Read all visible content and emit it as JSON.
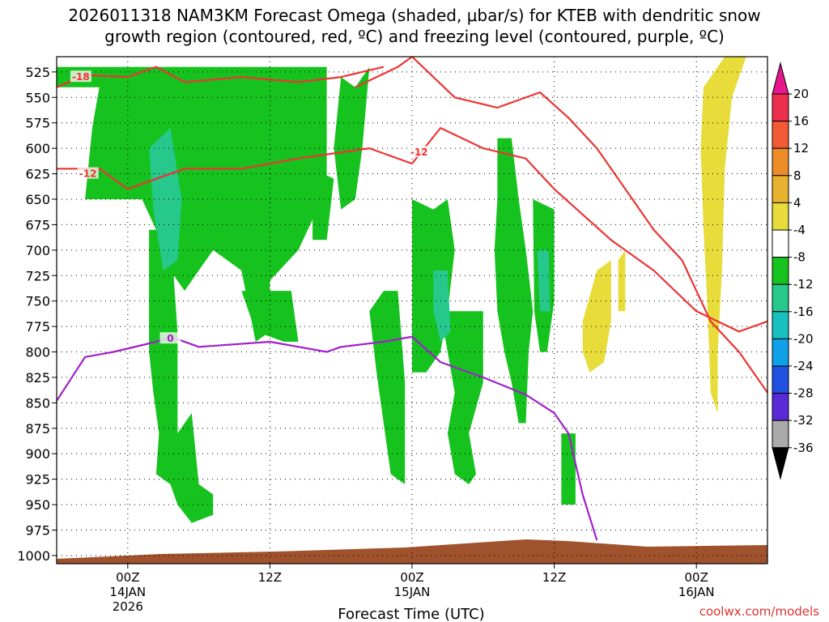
{
  "chart_data": {
    "type": "time-height",
    "title_line1": "2026011318 NAM3KM Forecast Omega (shaded, μbar/s) for KTEB with dendritic snow",
    "title_line2": "growth region (contoured, red, ºC) and freezing level (contoured, purple, ºC)",
    "xlabel": "Forecast Time (UTC)",
    "credit": "coolwx.com/models",
    "x_range_hours": [
      -5,
      45
    ],
    "x_ticks": [
      {
        "hour": 0,
        "label": "00Z",
        "sub1": "14JAN",
        "sub2": "2026"
      },
      {
        "hour": 10,
        "label": "12Z",
        "sub1": "",
        "sub2": ""
      },
      {
        "hour": 20,
        "label": "00Z",
        "sub1": "15JAN",
        "sub2": ""
      },
      {
        "hour": 30,
        "label": "12Z",
        "sub1": "",
        "sub2": ""
      },
      {
        "hour": 40,
        "label": "00Z",
        "sub1": "16JAN",
        "sub2": ""
      }
    ],
    "y_levels": [
      "525",
      "550",
      "575",
      "600",
      "625",
      "650",
      "675",
      "700",
      "725",
      "750",
      "775",
      "800",
      "825",
      "850",
      "875",
      "900",
      "925",
      "950",
      "975",
      "1000"
    ],
    "y_range_mb": [
      510,
      1008
    ],
    "colorbar_labels": [
      "20",
      "16",
      "12",
      "8",
      "4",
      "-4",
      "-8",
      "-12",
      "-16",
      "-20",
      "-24",
      "-28",
      "-32",
      "-36"
    ],
    "colorbar_colors": [
      "#ee2e4e",
      "#f25a36",
      "#ee8c28",
      "#e8b22e",
      "#e8dc3a",
      "#ffffff",
      "#16c21e",
      "#26c88c",
      "#18c0c0",
      "#10a0e8",
      "#2050e0",
      "#5a2ad8",
      "#9a10c8",
      "#aaaaaa"
    ],
    "colorbar_top_color": "#e8168c",
    "colorbar_bottom_color": "#000000",
    "omega_regions": [
      {
        "color": "#16c21e",
        "pts": [
          [
            -5,
            540
          ],
          [
            -5,
            520
          ],
          [
            0,
            520
          ],
          [
            5,
            520
          ],
          [
            9,
            520
          ],
          [
            14,
            520
          ],
          [
            14,
            640
          ],
          [
            12,
            700
          ],
          [
            10,
            730
          ],
          [
            10,
            780
          ],
          [
            9,
            790
          ],
          [
            8,
            720
          ],
          [
            6,
            700
          ],
          [
            4,
            740
          ],
          [
            3,
            720
          ],
          [
            2,
            680
          ],
          [
            1,
            650
          ],
          [
            -1,
            650
          ],
          [
            -3,
            650
          ],
          [
            -2.5,
            580
          ],
          [
            -2,
            540
          ]
        ]
      },
      {
        "color": "#16c21e",
        "pts": [
          [
            1.5,
            680
          ],
          [
            3,
            680
          ],
          [
            3.5,
            780
          ],
          [
            3.5,
            880
          ],
          [
            4.5,
            860
          ],
          [
            5,
            930
          ],
          [
            6,
            940
          ],
          [
            6,
            960
          ],
          [
            4.5,
            968
          ],
          [
            3.5,
            950
          ],
          [
            3,
            930
          ],
          [
            2,
            920
          ],
          [
            2.2,
            880
          ],
          [
            1.8,
            840
          ],
          [
            1.5,
            800
          ]
        ]
      },
      {
        "color": "#16c21e",
        "pts": [
          [
            8,
            740
          ],
          [
            10,
            740
          ],
          [
            11.5,
            740
          ],
          [
            12,
            790
          ],
          [
            11,
            790
          ],
          [
            9,
            780
          ]
        ]
      },
      {
        "color": "#16c21e",
        "pts": [
          [
            15,
            530
          ],
          [
            16,
            540
          ],
          [
            17,
            520
          ],
          [
            16.5,
            600
          ],
          [
            16,
            650
          ],
          [
            15,
            660
          ],
          [
            14.5,
            600
          ]
        ]
      },
      {
        "color": "#16c21e",
        "pts": [
          [
            13,
            620
          ],
          [
            14.5,
            630
          ],
          [
            14,
            690
          ],
          [
            13,
            690
          ]
        ]
      },
      {
        "color": "#16c21e",
        "pts": [
          [
            18,
            740
          ],
          [
            19,
            740
          ],
          [
            19.5,
            830
          ],
          [
            19.5,
            930
          ],
          [
            18.5,
            920
          ],
          [
            17.5,
            820
          ],
          [
            17,
            760
          ]
        ]
      },
      {
        "color": "#16c21e",
        "pts": [
          [
            20,
            650
          ],
          [
            21.5,
            660
          ],
          [
            22.5,
            650
          ],
          [
            23,
            700
          ],
          [
            22.5,
            760
          ],
          [
            22,
            800
          ],
          [
            21,
            820
          ],
          [
            20,
            820
          ]
        ]
      },
      {
        "color": "#16c21e",
        "pts": [
          [
            22,
            760
          ],
          [
            24,
            760
          ],
          [
            25,
            760
          ],
          [
            25,
            830
          ],
          [
            24,
            880
          ],
          [
            24.5,
            920
          ],
          [
            24,
            930
          ],
          [
            23,
            920
          ],
          [
            22.5,
            880
          ],
          [
            23,
            840
          ]
        ]
      },
      {
        "color": "#16c21e",
        "pts": [
          [
            26,
            590
          ],
          [
            27,
            590
          ],
          [
            27.5,
            650
          ],
          [
            28,
            700
          ],
          [
            28.5,
            760
          ],
          [
            28.2,
            800
          ],
          [
            28,
            870
          ],
          [
            27.5,
            870
          ],
          [
            27,
            830
          ],
          [
            26.5,
            800
          ],
          [
            26,
            760
          ],
          [
            25.8,
            700
          ],
          [
            26,
            650
          ]
        ]
      },
      {
        "color": "#16c21e",
        "pts": [
          [
            28.5,
            650
          ],
          [
            30,
            660
          ],
          [
            30,
            750
          ],
          [
            29.5,
            800
          ],
          [
            29,
            800
          ],
          [
            28.6,
            760
          ]
        ]
      },
      {
        "color": "#16c21e",
        "pts": [
          [
            30.5,
            880
          ],
          [
            31.5,
            880
          ],
          [
            31.5,
            950
          ],
          [
            30.5,
            950
          ]
        ]
      },
      {
        "color": "#26c88c",
        "pts": [
          [
            1.5,
            600
          ],
          [
            3,
            580
          ],
          [
            3.8,
            650
          ],
          [
            3.5,
            710
          ],
          [
            2.5,
            720
          ],
          [
            1.8,
            660
          ]
        ]
      },
      {
        "color": "#26c88c",
        "pts": [
          [
            21.5,
            720
          ],
          [
            22.5,
            720
          ],
          [
            22.7,
            780
          ],
          [
            22,
            790
          ],
          [
            21.5,
            760
          ]
        ]
      },
      {
        "color": "#26c88c",
        "pts": [
          [
            28.8,
            700
          ],
          [
            29.6,
            700
          ],
          [
            29.7,
            760
          ],
          [
            29,
            760
          ]
        ]
      },
      {
        "color": "#e8dc3a",
        "pts": [
          [
            40.5,
            540
          ],
          [
            41.5,
            520
          ],
          [
            42,
            510
          ],
          [
            43.5,
            510
          ],
          [
            42.5,
            550
          ],
          [
            42,
            620
          ],
          [
            41.8,
            720
          ],
          [
            41.5,
            800
          ],
          [
            41.5,
            860
          ],
          [
            41,
            840
          ],
          [
            40.8,
            760
          ],
          [
            40.5,
            680
          ],
          [
            40.3,
            600
          ]
        ]
      },
      {
        "color": "#e8dc3a",
        "pts": [
          [
            32,
            770
          ],
          [
            33,
            720
          ],
          [
            34,
            710
          ],
          [
            34,
            770
          ],
          [
            33.5,
            810
          ],
          [
            32.5,
            820
          ],
          [
            32,
            800
          ]
        ]
      },
      {
        "color": "#e8dc3a",
        "pts": [
          [
            34.5,
            710
          ],
          [
            35,
            700
          ],
          [
            35,
            760
          ],
          [
            34.5,
            760
          ]
        ]
      }
    ],
    "series": [
      {
        "name": "-18",
        "color": "#ee3333",
        "label_at": [
          -3.3,
          530
        ],
        "pts": [
          [
            -5,
            540
          ],
          [
            -3,
            528
          ],
          [
            0,
            530
          ],
          [
            2,
            520
          ],
          [
            4,
            535
          ],
          [
            8,
            530
          ],
          [
            12,
            535
          ],
          [
            15,
            530
          ],
          [
            18,
            520
          ]
        ]
      },
      {
        "name": "-12",
        "color": "#ee3333",
        "label_at": [
          -2.8,
          625
        ],
        "pts": [
          [
            -5,
            620
          ],
          [
            -2,
            620
          ],
          [
            0,
            640
          ],
          [
            2,
            630
          ],
          [
            4,
            620
          ],
          [
            8,
            620
          ],
          [
            12,
            610
          ],
          [
            17,
            600
          ],
          [
            20,
            615
          ],
          [
            22,
            580
          ],
          [
            25,
            600
          ],
          [
            28,
            610
          ],
          [
            30,
            640
          ],
          [
            34,
            690
          ],
          [
            37,
            720
          ],
          [
            40,
            760
          ],
          [
            43,
            780
          ],
          [
            45,
            770
          ]
        ]
      },
      {
        "name": "-12",
        "color": "#ee3333",
        "label_at": [
          20.5,
          604
        ],
        "pts": [
          [
            16,
            540
          ],
          [
            19,
            520
          ],
          [
            20,
            510
          ],
          [
            23,
            550
          ],
          [
            26,
            560
          ],
          [
            29,
            545
          ],
          [
            31,
            570
          ],
          [
            33,
            600
          ],
          [
            35,
            640
          ],
          [
            37,
            680
          ],
          [
            39,
            710
          ],
          [
            41,
            770
          ],
          [
            43,
            800
          ],
          [
            45,
            840
          ]
        ]
      },
      {
        "name": "0",
        "color": "#a020c8",
        "label_at": [
          3,
          787
        ],
        "pts": [
          [
            -5,
            848
          ],
          [
            -3,
            805
          ],
          [
            -1,
            800
          ],
          [
            2,
            790
          ],
          [
            3,
            785
          ],
          [
            5,
            795
          ],
          [
            10,
            790
          ],
          [
            14,
            800
          ],
          [
            15,
            795
          ],
          [
            18,
            790
          ],
          [
            20,
            785
          ],
          [
            22,
            810
          ],
          [
            25,
            825
          ],
          [
            28,
            842
          ],
          [
            30,
            860
          ],
          [
            31,
            880
          ],
          [
            32,
            940
          ],
          [
            33,
            985
          ]
        ]
      }
    ]
  }
}
